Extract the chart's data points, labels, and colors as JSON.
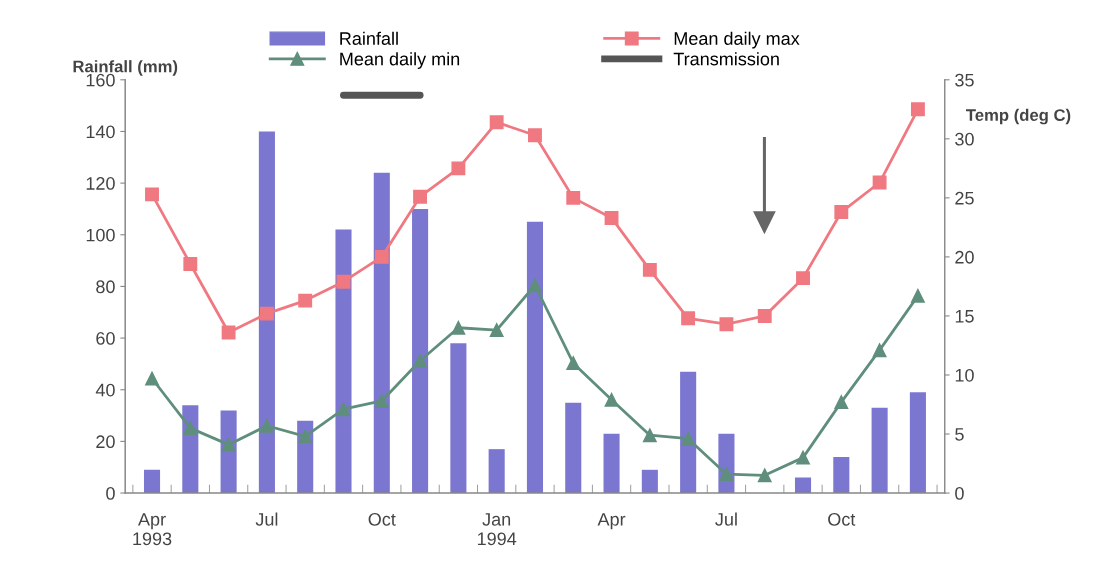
{
  "chart_data": {
    "type": "bar",
    "categories": [
      "Apr\n1993",
      null,
      null,
      "Jul",
      null,
      null,
      "Oct",
      null,
      null,
      "Jan\n1994",
      null,
      null,
      "Apr",
      null,
      null,
      "Jul",
      null,
      null,
      "Oct",
      null,
      null
    ],
    "ylabel": "Rainfall (mm)",
    "y2label": "Temp (deg C)",
    "ylim": [
      0,
      160
    ],
    "yticks": [
      0,
      20,
      40,
      60,
      80,
      100,
      120,
      140,
      160
    ],
    "y2lim": [
      0,
      35
    ],
    "y2ticks": [
      0,
      5,
      10,
      15,
      20,
      25,
      30,
      35
    ],
    "legend": "top",
    "grid": false,
    "series": [
      {
        "name": "Rainfall",
        "color": "#7b77d0",
        "values": [
          9,
          34,
          32,
          140,
          28,
          102,
          124,
          110,
          58,
          17,
          105,
          35,
          23,
          9,
          47,
          23,
          0,
          6,
          14,
          33,
          39
        ]
      },
      {
        "name": "Mean daily max",
        "type": "line",
        "axis": "y2",
        "marker": "square",
        "color": "#f07880",
        "values": [
          25.3,
          19.4,
          13.6,
          15.2,
          16.3,
          17.9,
          20.0,
          25.1,
          27.5,
          31.4,
          30.3,
          25.0,
          23.3,
          18.9,
          14.8,
          14.3,
          15.0,
          18.2,
          23.8,
          26.3,
          32.5
        ]
      },
      {
        "name": "Mean daily min",
        "type": "line",
        "axis": "y2",
        "marker": "triangle",
        "color": "#5f8f7c",
        "values": [
          9.7,
          5.5,
          4.1,
          5.7,
          4.8,
          7.1,
          7.8,
          11.2,
          14.0,
          13.8,
          17.6,
          11.0,
          7.9,
          4.9,
          4.6,
          1.6,
          1.5,
          3.0,
          7.7,
          12.1,
          16.7
        ]
      },
      {
        "name": "Transmission",
        "type": "line",
        "marker": "none",
        "color": "#555555",
        "values": [
          null,
          null,
          null,
          null,
          null,
          154,
          154,
          154,
          null,
          null,
          null,
          null,
          null,
          null,
          null,
          null,
          null,
          null,
          null,
          null,
          null
        ]
      }
    ]
  }
}
